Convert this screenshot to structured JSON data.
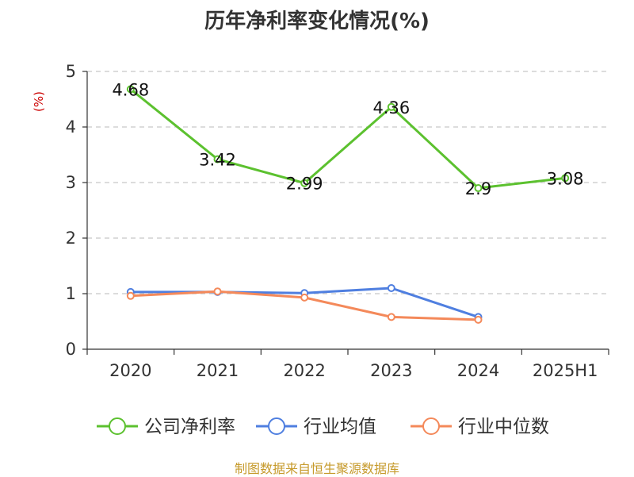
{
  "chart_data": {
    "type": "line",
    "title": "历年净利率变化情况(%)",
    "ylabel": "(%)",
    "categories": [
      "2020",
      "2021",
      "2022",
      "2023",
      "2024",
      "2025H1"
    ],
    "ylim": [
      0,
      5
    ],
    "yticks": [
      0,
      1,
      2,
      3,
      4,
      5
    ],
    "grid": true,
    "legend_position": "bottom",
    "series": [
      {
        "name": "公司净利率",
        "color": "#5cc12f",
        "values": [
          4.68,
          3.42,
          2.99,
          4.36,
          2.9,
          3.08
        ],
        "show_labels": true,
        "labels": [
          "4.68",
          "3.42",
          "2.99",
          "4.36",
          "2.9",
          "3.08"
        ]
      },
      {
        "name": "行业均值",
        "color": "#4f7fe0",
        "values": [
          1.03,
          1.03,
          1.01,
          1.1,
          0.58,
          null
        ],
        "show_labels": false
      },
      {
        "name": "行业中位数",
        "color": "#f4895a",
        "values": [
          0.96,
          1.04,
          0.93,
          0.58,
          0.53,
          null
        ],
        "show_labels": false
      }
    ]
  },
  "source": "制图数据来自恒生聚源数据库"
}
